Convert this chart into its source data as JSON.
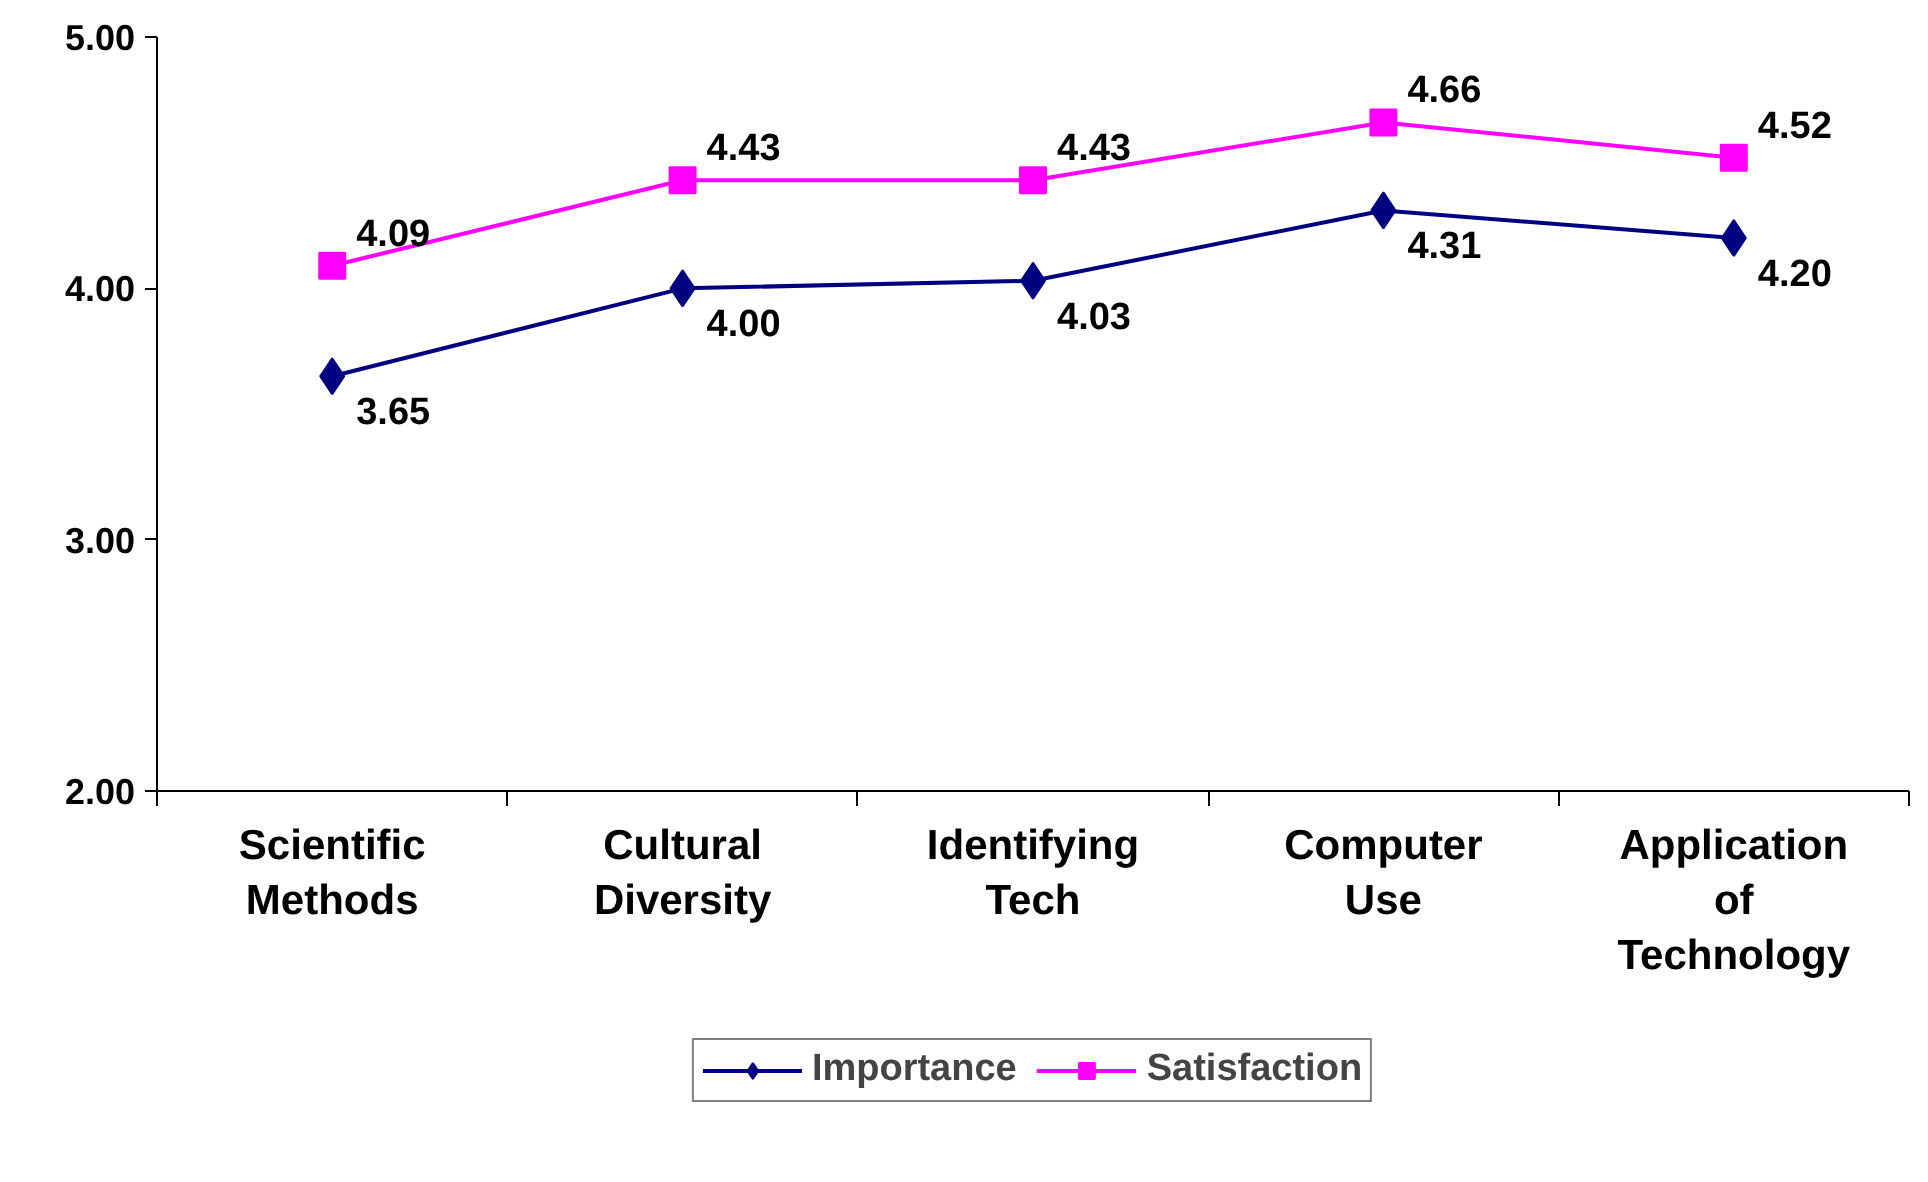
{
  "chart_data": {
    "type": "line",
    "categories": [
      "Scientific\nMethods",
      "Cultural\nDiversity",
      "Identifying\nTech",
      "Computer\nUse",
      "Application\nof\nTechnology"
    ],
    "series": [
      {
        "name": "Importance",
        "color": "#000080",
        "marker": "diamond",
        "values": [
          3.65,
          4.0,
          4.03,
          4.31,
          4.2
        ],
        "value_labels": [
          "3.65",
          "4.00",
          "4.03",
          "4.31",
          "4.20"
        ]
      },
      {
        "name": "Satisfaction",
        "color": "#ff00ff",
        "marker": "square",
        "values": [
          4.09,
          4.43,
          4.43,
          4.66,
          4.52
        ],
        "value_labels": [
          "4.09",
          "4.43",
          "4.43",
          "4.66",
          "4.52"
        ]
      }
    ],
    "ylim": [
      2,
      5
    ],
    "yticks": [
      {
        "value": 2,
        "label": "2.00"
      },
      {
        "value": 3,
        "label": "3.00"
      },
      {
        "value": 4,
        "label": "4.00"
      },
      {
        "value": 5,
        "label": "5.00"
      }
    ],
    "legend": "bottom"
  }
}
